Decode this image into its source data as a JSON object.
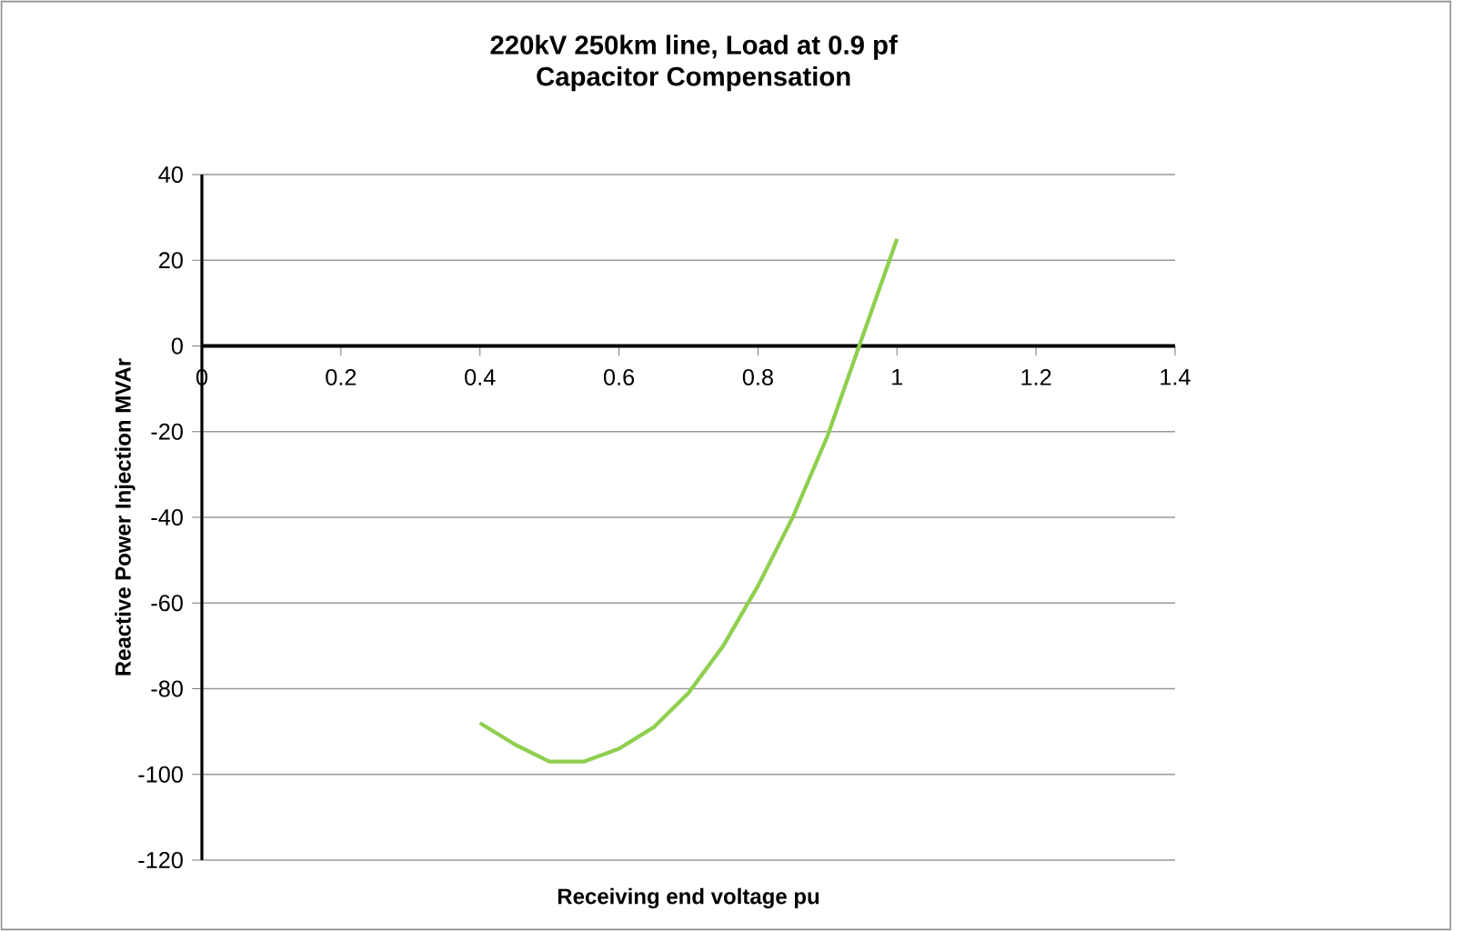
{
  "chart_data": {
    "type": "line",
    "title": "220kV 250km line, Load at 0.9 pf",
    "subtitle": "Capacitor Compensation",
    "xlabel": "Receiving end voltage  pu",
    "ylabel": "Reactive Power Injection  MVAr",
    "x": [
      0.4,
      0.45,
      0.5,
      0.55,
      0.6,
      0.65,
      0.7,
      0.75,
      0.8,
      0.85,
      0.9,
      0.95,
      1.0
    ],
    "series": [
      {
        "color": "#8fcf4f",
        "values": [
          -88,
          -93,
          -97,
          -97,
          -94,
          -89,
          -81,
          -70,
          -56,
          -40,
          -21,
          2,
          25
        ]
      }
    ],
    "xlim": [
      0,
      1.4
    ],
    "xticks": [
      0,
      0.2,
      0.4,
      0.6,
      0.8,
      1,
      1.2,
      1.4
    ],
    "ylim": [
      -120,
      40
    ],
    "yticks": [
      -120,
      -100,
      -80,
      -60,
      -40,
      -20,
      0,
      20,
      40
    ],
    "grid": "y",
    "marker": "none",
    "line_style": "solid"
  }
}
